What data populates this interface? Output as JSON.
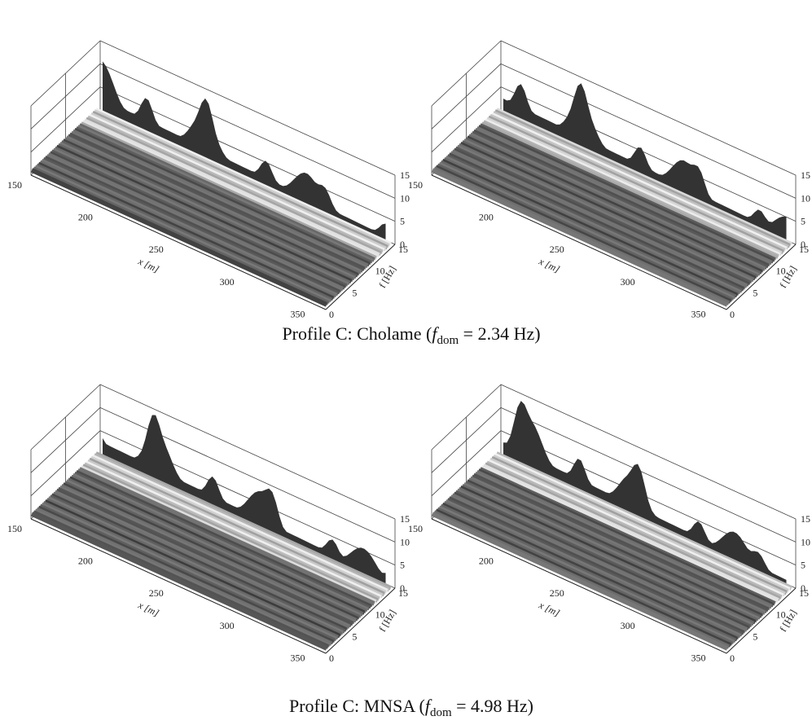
{
  "panels": [
    {
      "x_ticks": [
        150,
        200,
        250,
        300,
        350
      ],
      "x_label": "x [m]",
      "f_ticks": [
        0,
        5,
        10,
        15
      ],
      "f_label": "f [Hz]",
      "z_ticks": [
        0,
        5,
        10,
        15
      ]
    },
    {
      "x_ticks": [
        150,
        200,
        250,
        300,
        350
      ],
      "x_label": "x [m]",
      "f_ticks": [
        0,
        5,
        10,
        15
      ],
      "f_label": "f [Hz]",
      "z_ticks": [
        0,
        5,
        10,
        15
      ]
    },
    {
      "x_ticks": [
        150,
        200,
        250,
        300,
        350
      ],
      "x_label": "x [m]",
      "f_ticks": [
        0,
        5,
        10,
        15
      ],
      "f_label": "f [Hz]",
      "z_ticks": [
        0,
        5,
        10,
        15
      ]
    },
    {
      "x_ticks": [
        150,
        200,
        250,
        300,
        350
      ],
      "x_label": "x [m]",
      "f_ticks": [
        0,
        5,
        10,
        15
      ],
      "f_label": "f [Hz]",
      "z_ticks": [
        0,
        5,
        10,
        15
      ]
    }
  ],
  "captions": [
    {
      "prefix": "Profile C: Cholame (",
      "symbol": "f",
      "subscript": "dom",
      "suffix": " = 2.34 Hz)"
    },
    {
      "prefix": "Profile C: MNSA (",
      "symbol": "f",
      "subscript": "dom",
      "suffix": " = 4.98 Hz)"
    }
  ]
}
